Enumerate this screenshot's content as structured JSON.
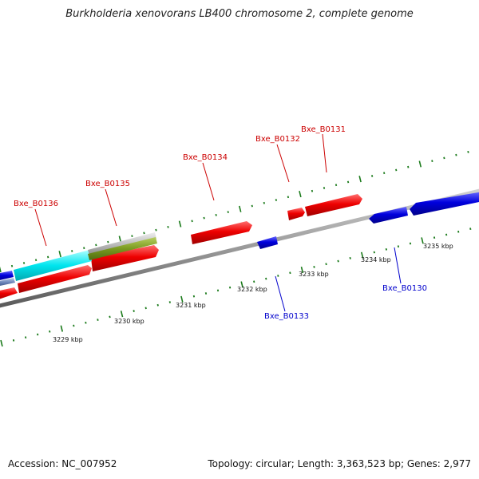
{
  "title": "Burkholderia xenovorans LB400 chromosome 2, complete genome",
  "accession": "Accession: NC_007952",
  "stats": "Topology: circular; Length: 3,363,523 bp; Genes: 2,977",
  "colors": {
    "forward_cds": "#ee0000",
    "reverse_cds": "#0000dd",
    "forward_label": "#cc0000",
    "reverse_label": "#0000cc",
    "backbone": "#8a8a8a",
    "tick": "#1a7a1a",
    "rna_cyan": "#00e5ee",
    "gray_feature": "#bdbdbd",
    "olive_feature": "#7a9a20"
  },
  "scale_ticks": [
    "3229 kbp",
    "3230 kbp",
    "3231 kbp",
    "3232 kbp",
    "3233 kbp",
    "3234 kbp",
    "3235 kbp"
  ],
  "forward_genes": [
    "Bxe_B0136",
    "Bxe_B0135",
    "Bxe_B0134",
    "Bxe_B0132",
    "Bxe_B0131"
  ],
  "reverse_genes": [
    "Bxe_B0133",
    "Bxe_B0130"
  ]
}
